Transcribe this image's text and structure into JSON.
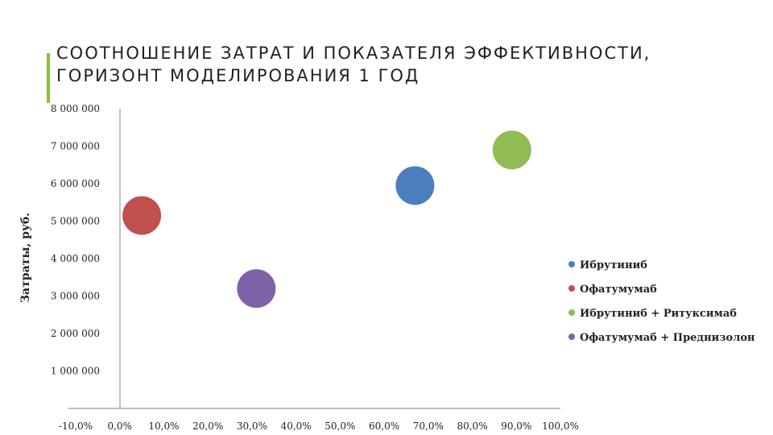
{
  "slide": {
    "title": "СООТНОШЕНИЕ ЗАТРАТ И ПОКАЗАТЕЛЯ ЭФФЕКТИВНОСТИ, ГОРИЗОНТ МОДЕЛИРОВАНИЯ 1 ГОД",
    "accent_color": "#8cbf3f"
  },
  "chart_data": {
    "type": "scatter",
    "title": "",
    "xlabel": "",
    "ylabel": "Затраты, руб.",
    "xlim": [
      -10,
      100
    ],
    "ylim": [
      0,
      8000000
    ],
    "grid": false,
    "legend_position": "right",
    "x_ticks": [
      -10,
      0,
      10,
      20,
      30,
      40,
      50,
      60,
      70,
      80,
      90,
      100
    ],
    "x_tick_labels": [
      "-10,0%",
      "0,0%",
      "10,0%",
      "20,0%",
      "30,0%",
      "40,0%",
      "50,0%",
      "60,0%",
      "70,0%",
      "80,0%",
      "90,0%",
      "100,0%"
    ],
    "y_ticks": [
      1000000,
      2000000,
      3000000,
      4000000,
      5000000,
      6000000,
      7000000,
      8000000
    ],
    "y_tick_labels": [
      "1 000 000",
      "2 000 000",
      "3 000 000",
      "4 000 000",
      "5 000 000",
      "6 000 000",
      "7 000 000",
      "8 000 000"
    ],
    "series": [
      {
        "name": "Ибрутиниб",
        "x": 67,
        "y": 5950000,
        "color": "#4a7ebf"
      },
      {
        "name": "Офатумумаб",
        "x": 5,
        "y": 5150000,
        "color": "#c0504d"
      },
      {
        "name": "Ибрутиниб + Ритуксимаб",
        "x": 89,
        "y": 6900000,
        "color": "#8fbc55"
      },
      {
        "name": "Офатумумаб + Преднизолон",
        "x": 31,
        "y": 3200000,
        "color": "#7e62a8"
      }
    ]
  }
}
